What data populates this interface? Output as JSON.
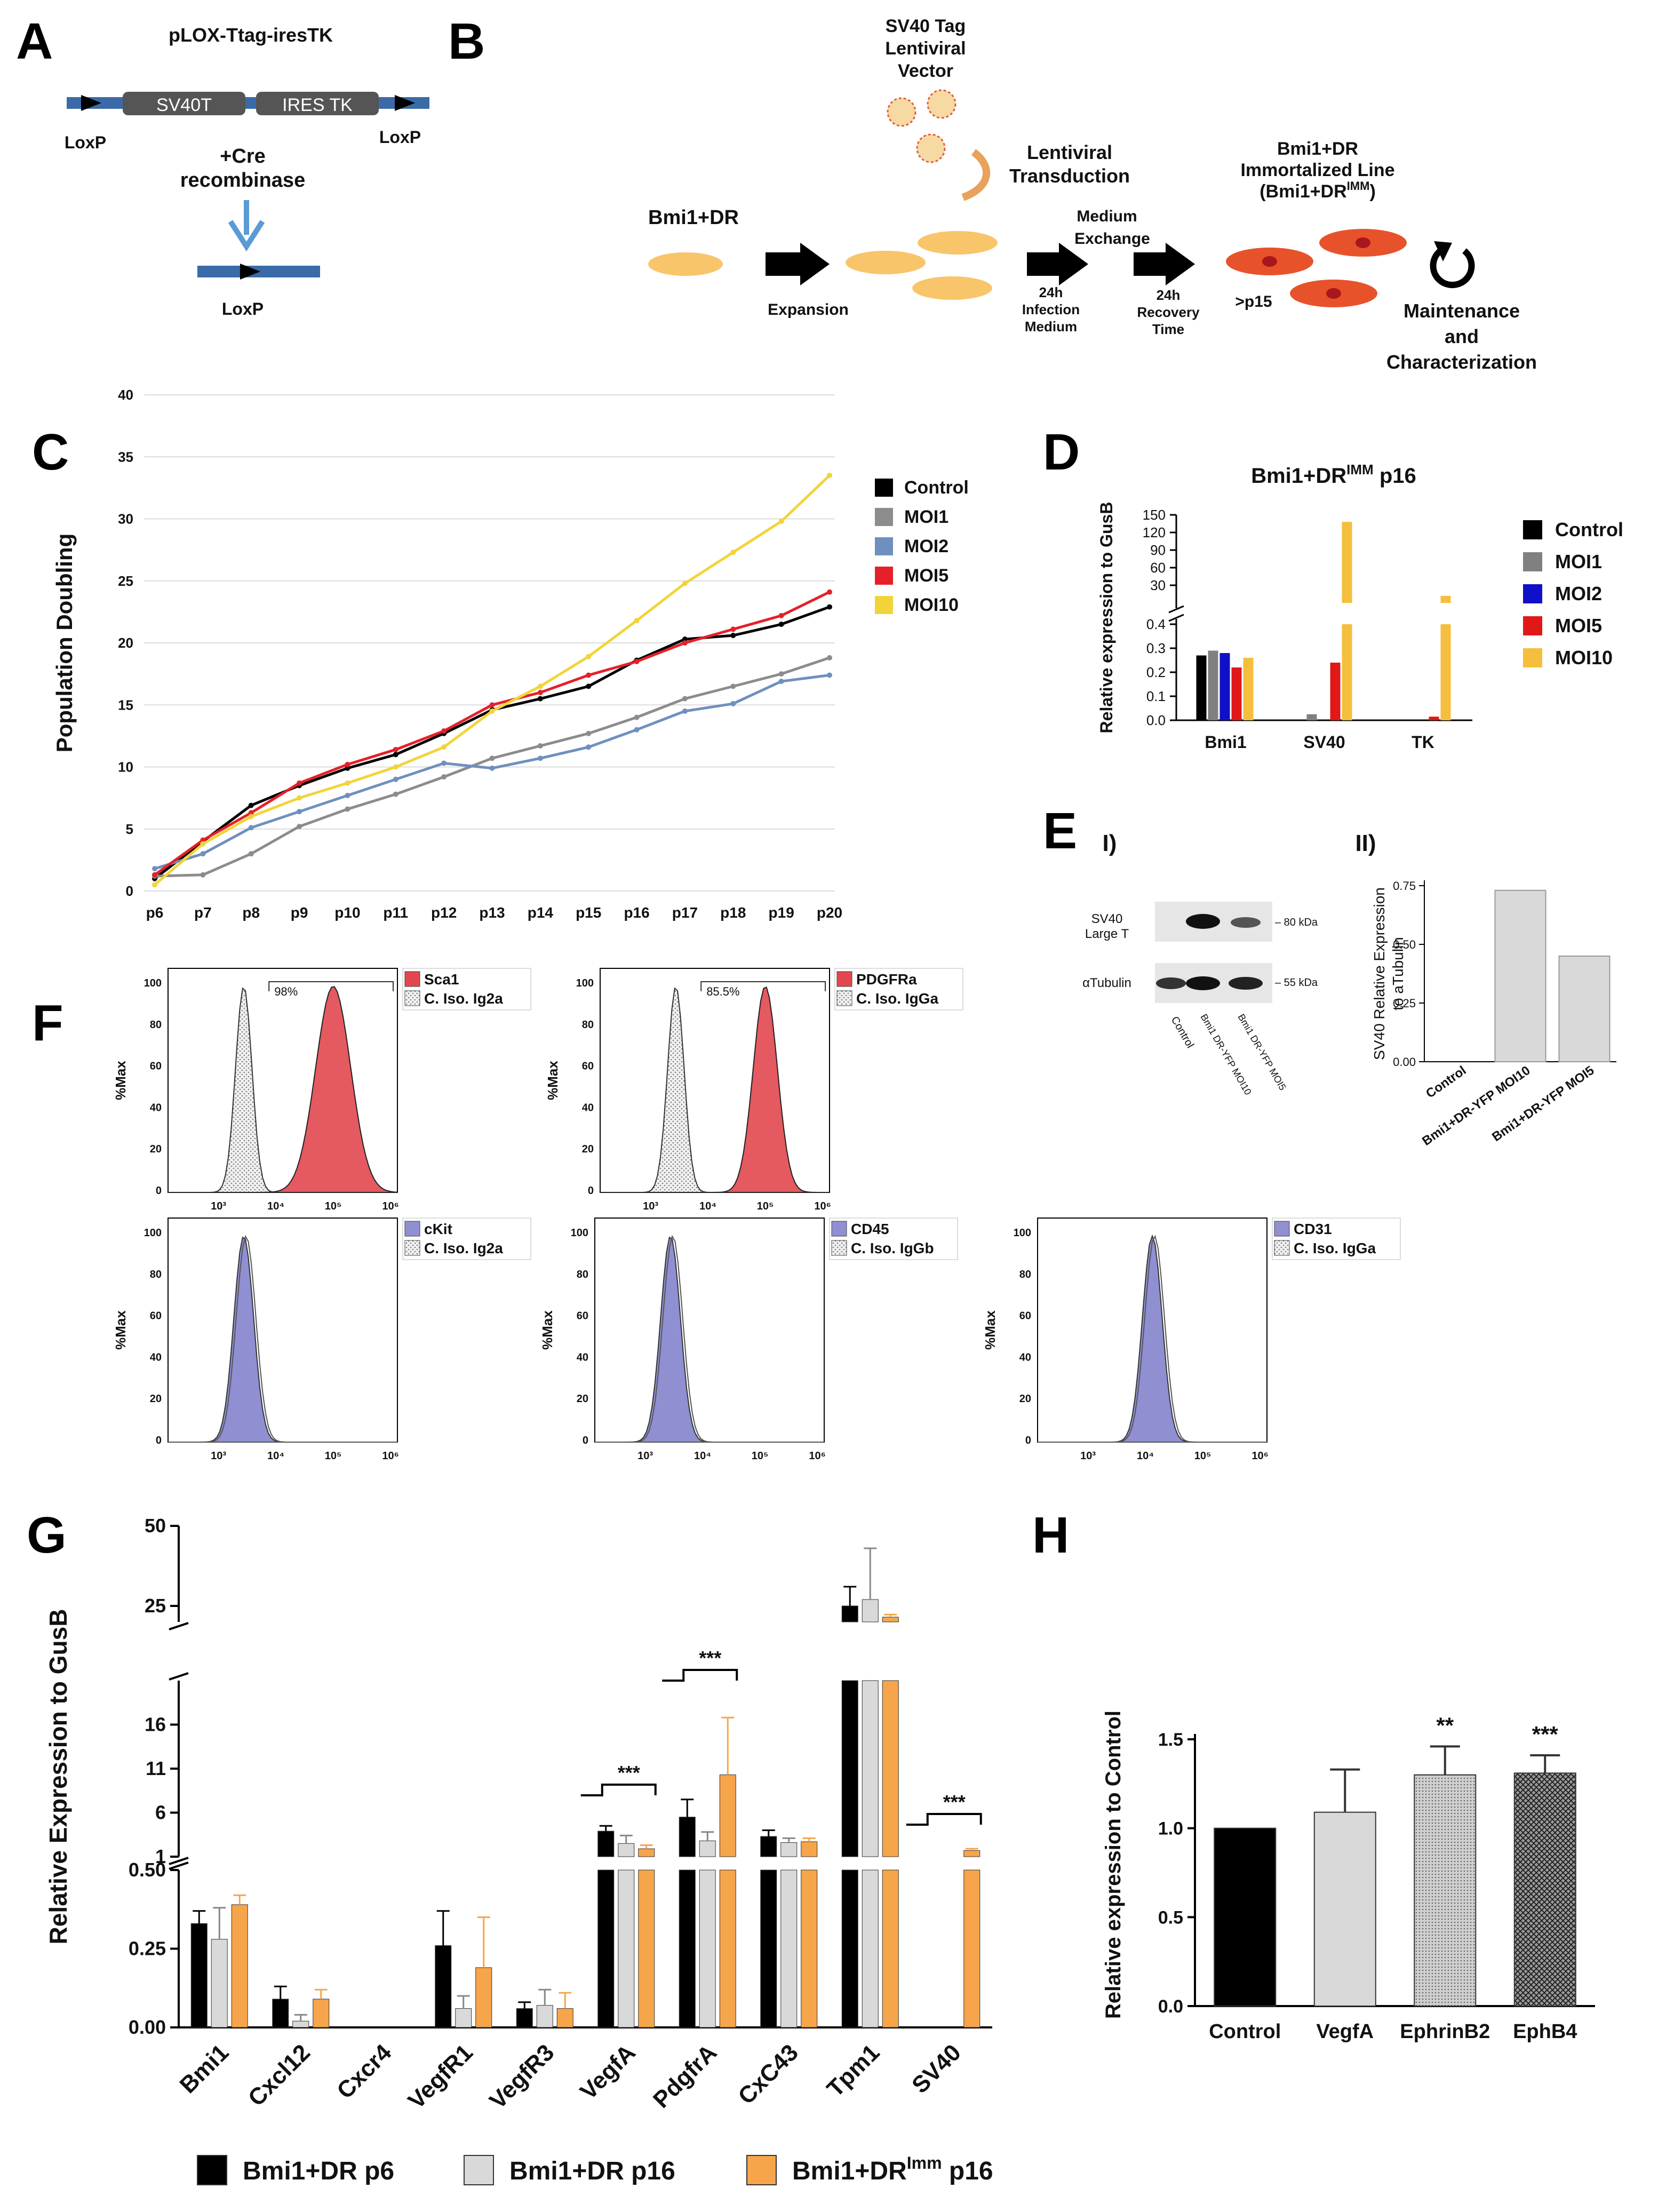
{
  "panel_letters": [
    "A",
    "B",
    "C",
    "D",
    "E",
    "F",
    "G",
    "H"
  ],
  "panelA": {
    "title": "pLOX-Ttag-iresTK",
    "seg1": "SV40T",
    "seg2": "IRES TK",
    "loxp": "LoxP",
    "cre_line1": "+Cre",
    "cre_line2": "recombinase"
  },
  "panelB": {
    "vector_line1": "SV40 Tag",
    "vector_line2": "Lentiviral",
    "vector_line3": "Vector",
    "trans_line1": "Lentiviral",
    "trans_line2": "Transduction",
    "start_label": "Bmi1+DR",
    "expansion": "Expansion",
    "infect_line1": "24h",
    "infect_line2": "Infection",
    "infect_line3": "Medium",
    "medium_line1": "Medium",
    "medium_line2": "Exchange",
    "rec_line1": "24h",
    "rec_line2": "Recovery",
    "rec_line3": "Time",
    "imm_line1": "Bmi1+DR",
    "imm_line2": "Immortalized Line",
    "imm_line3_pre": "(Bmi1+DR",
    "imm_line3_sup": "IMM",
    "imm_line3_post": ")",
    "passage": ">p15",
    "maint_line1": "Maintenance",
    "maint_line2": "and",
    "maint_line3": "Characterization"
  },
  "panelF": {
    "plots": [
      {
        "marker": "Sca1",
        "iso": "C. Iso. Ig2a",
        "gate": "98%",
        "color": "#e2474f"
      },
      {
        "marker": "PDGFRa",
        "iso": "C. Iso. IgGa",
        "gate": "85.5%",
        "color": "#e2474f"
      },
      {
        "marker": "cKit",
        "iso": "C. Iso. Ig2a",
        "color": "#8f8fd2"
      },
      {
        "marker": "CD45",
        "iso": "C. Iso. IgGb",
        "color": "#8f8fd2"
      },
      {
        "marker": "CD31",
        "iso": "C. Iso. IgGa",
        "color": "#8f8fd2"
      }
    ],
    "ylabel": "%Max",
    "yticks": [
      "0",
      "20",
      "40",
      "60",
      "80",
      "100"
    ],
    "xticks": [
      "10³",
      "10⁴",
      "10⁵",
      "10⁶"
    ]
  },
  "panelE": {
    "blot_label1_line1": "SV40",
    "blot_label1_line2": "Large T",
    "blot_label2": "αTubulin",
    "kda1": "– 80 kDa",
    "kda2": "– 55 kDa",
    "lanes": [
      "Control",
      "Bmi1 DR-YFP MOI10",
      "Bmi1 DR-YFP MOI5"
    ]
  },
  "chart_data": [
    {
      "id": "C",
      "type": "line",
      "title": "",
      "xlabel": "",
      "ylabel": "Population Doubling",
      "categories": [
        "p6",
        "p7",
        "p8",
        "p9",
        "p10",
        "p11",
        "p12",
        "p13",
        "p14",
        "p15",
        "p16",
        "p17",
        "p18",
        "p19",
        "p20"
      ],
      "ylim": [
        0,
        40
      ],
      "yticks": [
        0,
        5,
        10,
        15,
        20,
        25,
        30,
        35,
        40
      ],
      "legend": "right",
      "series": [
        {
          "name": "Control",
          "color": "#000000",
          "values": [
            1.0,
            4.0,
            6.9,
            8.5,
            9.9,
            11.0,
            12.7,
            14.6,
            15.5,
            16.5,
            18.6,
            20.3,
            20.6,
            21.5,
            22.9
          ]
        },
        {
          "name": "MOI1",
          "color": "#8c8c8c",
          "values": [
            1.2,
            1.3,
            3.0,
            5.2,
            6.6,
            7.8,
            9.2,
            10.7,
            11.7,
            12.7,
            14.0,
            15.5,
            16.5,
            17.5,
            18.8
          ]
        },
        {
          "name": "MOI2",
          "color": "#6f8fbf",
          "values": [
            1.8,
            3.0,
            5.1,
            6.4,
            7.7,
            9.0,
            10.3,
            9.9,
            10.7,
            11.6,
            13.0,
            14.5,
            15.1,
            16.9,
            17.4
          ]
        },
        {
          "name": "MOI5",
          "color": "#e5202a",
          "values": [
            1.3,
            4.1,
            6.3,
            8.7,
            10.2,
            11.4,
            12.9,
            15.0,
            16.0,
            17.4,
            18.5,
            20.0,
            21.1,
            22.2,
            24.1
          ]
        },
        {
          "name": "MOI10",
          "color": "#f2d43a",
          "values": [
            0.5,
            3.8,
            6.0,
            7.5,
            8.7,
            10.0,
            11.6,
            14.5,
            16.5,
            18.9,
            21.8,
            24.8,
            27.3,
            29.8,
            33.5
          ]
        }
      ]
    },
    {
      "id": "D",
      "type": "bar",
      "title_pre": "Bmi1+DR",
      "title_sup": "IMM",
      "title_post": " p16",
      "xlabel": "",
      "ylabel": "Relative expression to GusB",
      "categories": [
        "Bmi1",
        "SV40",
        "TK"
      ],
      "ylim_lower": [
        0,
        0.4
      ],
      "ylim_upper": [
        0,
        150
      ],
      "yticks_lower": [
        "0.0",
        "0.1",
        "0.2",
        "0.3",
        "0.4"
      ],
      "yticks_upper": [
        "30",
        "60",
        "90",
        "120",
        "150"
      ],
      "legend": "right",
      "series": [
        {
          "name": "Control",
          "color": "#000000",
          "values": [
            0.27,
            0.0,
            0.0
          ]
        },
        {
          "name": "MOI1",
          "color": "#808080",
          "values": [
            0.29,
            0.025,
            0.0
          ]
        },
        {
          "name": "MOI2",
          "color": "#1010c8",
          "values": [
            0.28,
            0.0,
            0.0
          ]
        },
        {
          "name": "MOI5",
          "color": "#e01818",
          "values": [
            0.22,
            0.24,
            0.015
          ]
        },
        {
          "name": "MOI10",
          "color": "#f5be3c",
          "values": [
            0.26,
            138,
            12
          ]
        }
      ]
    },
    {
      "id": "E-II",
      "type": "bar",
      "xlabel": "",
      "ylabel_line1": "SV40 Relative Expression",
      "ylabel_line2": "to aTubulin",
      "categories": [
        "Control",
        "Bmi1+DR-YFP MOI10",
        "Bmi1+DR-YFP MOI5"
      ],
      "values": [
        0.0,
        0.73,
        0.45
      ],
      "ylim": [
        0,
        0.75
      ],
      "yticks": [
        "0.00",
        "0.25",
        "0.50",
        "0.75"
      ],
      "color": "#d9d9d9"
    },
    {
      "id": "G",
      "type": "bar",
      "xlabel": "",
      "ylabel": "Relative Expression to GusB",
      "categories": [
        "Bmi1",
        "Cxcl12",
        "Cxcr4",
        "VegfR1",
        "VegfR3",
        "VegfA",
        "PdgfrA",
        "CxC43",
        "Tpm1",
        "SV40"
      ],
      "yticks_low": [
        "0.00",
        "0.25",
        "0.50"
      ],
      "yticks_mid": [
        "1",
        "6",
        "11",
        "16"
      ],
      "yticks_high": [
        "25",
        "50"
      ],
      "legend": "bottom",
      "series": [
        {
          "name": "Bmi1+DR p6",
          "color": "#000000",
          "values": [
            0.33,
            0.09,
            0,
            0.26,
            0.06,
            3.9,
            5.5,
            3.3,
            25,
            0
          ]
        },
        {
          "name": "Bmi1+DR p16",
          "color": "#d9d9d9",
          "values": [
            0.28,
            0.02,
            0,
            0.06,
            0.07,
            2.5,
            2.8,
            2.6,
            27,
            0
          ]
        },
        {
          "name_pre": "Bmi1+DR",
          "name_sup": "Imm",
          "name_post": " p16",
          "name": "Bmi1+DR Imm p16",
          "color": "#f6a54a",
          "values": [
            0.39,
            0.09,
            0,
            0.19,
            0.06,
            1.9,
            10.3,
            2.7,
            21.5,
            1.7
          ]
        }
      ],
      "errors": [
        [
          0.04,
          0.04,
          0,
          0.11,
          0.02,
          0.6,
          2.0,
          0.7,
          6,
          0
        ],
        [
          0.1,
          0.02,
          0,
          0.04,
          0.05,
          0.9,
          1.0,
          0.5,
          16,
          0
        ],
        [
          0.03,
          0.03,
          0,
          0.16,
          0.05,
          0.4,
          6.5,
          0.4,
          0.8,
          0.2
        ]
      ],
      "significance": [
        {
          "category": "VegfA",
          "label": "***"
        },
        {
          "category": "PdgfrA",
          "label": "***"
        },
        {
          "category": "SV40",
          "label": "***"
        }
      ]
    },
    {
      "id": "H",
      "type": "bar",
      "xlabel": "",
      "ylabel": "Relative expression to Control",
      "categories": [
        "Control",
        "VegfA",
        "EphrinB2",
        "EphB4"
      ],
      "values": [
        1.0,
        1.09,
        1.3,
        1.31
      ],
      "errors": [
        0,
        0.24,
        0.16,
        0.1
      ],
      "ylim": [
        0,
        1.5
      ],
      "yticks": [
        "0.0",
        "0.5",
        "1.0",
        "1.5"
      ],
      "colors": [
        "#000000",
        "#d9d9d9",
        "#d9d9d9",
        "#b0b0b0"
      ],
      "significance": [
        {
          "category": "EphrinB2",
          "label": "**"
        },
        {
          "category": "EphB4",
          "label": "***"
        }
      ]
    }
  ]
}
